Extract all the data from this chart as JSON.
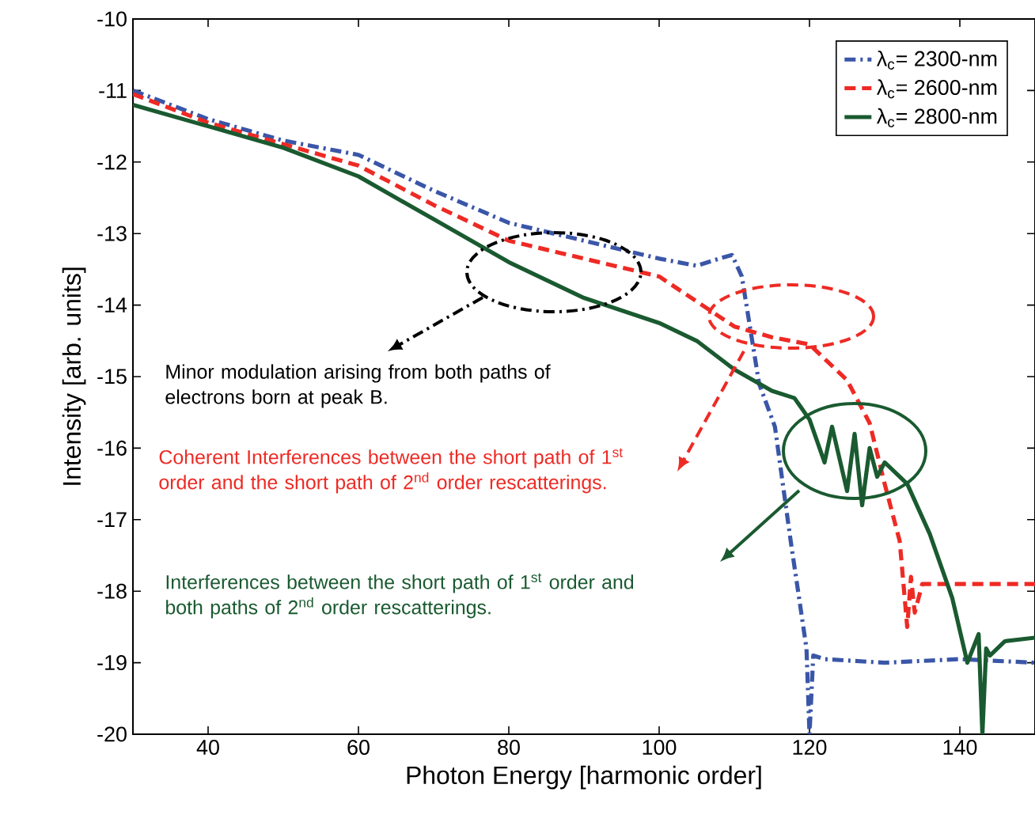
{
  "chart_data": {
    "type": "line",
    "xlabel": "Photon Energy [harmonic order]",
    "ylabel": "Intensity [arb. units]",
    "xlim": [
      30,
      150
    ],
    "ylim": [
      -20,
      -10
    ],
    "xticks": [
      40,
      60,
      80,
      100,
      120,
      140
    ],
    "yticks": [
      -20,
      -19,
      -18,
      -17,
      -16,
      -15,
      -14,
      -13,
      -12,
      -11,
      -10
    ],
    "legend": "top right",
    "series": [
      {
        "name": "λ$_{c}$= 2300-nm",
        "color": "#3a56a8",
        "line_style": "dashdot",
        "x": [
          30,
          40,
          50,
          60,
          70,
          80,
          90,
          100,
          105,
          108,
          109.7,
          111,
          113.3,
          115.4,
          117.5,
          119.6,
          120,
          120.5,
          122,
          130,
          140,
          150
        ],
        "values": [
          -11.0,
          -11.4,
          -11.7,
          -11.9,
          -12.4,
          -12.85,
          -13.1,
          -13.35,
          -13.45,
          -13.35,
          -13.3,
          -13.6,
          -15.1,
          -15.7,
          -17.3,
          -18.8,
          -20.0,
          -18.9,
          -18.95,
          -19.0,
          -18.95,
          -19.0
        ]
      },
      {
        "name": "λ$_{c}$= 2600-nm",
        "color": "#ee2a24",
        "line_style": "dashed",
        "x": [
          30,
          40,
          50,
          60,
          70,
          80,
          90,
          100,
          110,
          115,
          120,
          125,
          128,
          130,
          132,
          133,
          133.5,
          134,
          135,
          136,
          140,
          150
        ],
        "values": [
          -11.05,
          -11.45,
          -11.75,
          -12.05,
          -12.6,
          -13.1,
          -13.35,
          -13.6,
          -14.3,
          -14.45,
          -14.55,
          -15.05,
          -15.65,
          -16.5,
          -17.3,
          -18.5,
          -17.8,
          -18.3,
          -17.9,
          -17.9,
          -17.9,
          -17.9
        ]
      },
      {
        "name": "λ$_{c}$= 2800-nm",
        "color": "#1a5a30",
        "line_style": "solid",
        "x": [
          30,
          40,
          50,
          60,
          70,
          80,
          90,
          100,
          105,
          110,
          115,
          118,
          120,
          122,
          123,
          125,
          126,
          127,
          128,
          129,
          130,
          133,
          136,
          139,
          141,
          142.5,
          143,
          143.5,
          144,
          146,
          150
        ],
        "values": [
          -11.2,
          -11.5,
          -11.8,
          -12.2,
          -12.8,
          -13.4,
          -13.9,
          -14.25,
          -14.5,
          -14.9,
          -15.2,
          -15.3,
          -15.6,
          -16.2,
          -15.7,
          -16.6,
          -15.8,
          -16.8,
          -16.0,
          -16.4,
          -16.2,
          -16.5,
          -17.2,
          -18.1,
          -19.0,
          -18.6,
          -20.0,
          -18.8,
          -18.9,
          -18.7,
          -18.65
        ]
      }
    ],
    "annotations": [
      "Minor modulation arising from both paths of electrons born at peak B.",
      "Coherent Interferences between the short path of 1$^{st}$ order and the short path of 2$^{nd}$ order rescatterings.",
      "Interferences between the short path of 1$^{st}$ order and both paths of 2$^{nd}$ order rescatterings."
    ]
  }
}
